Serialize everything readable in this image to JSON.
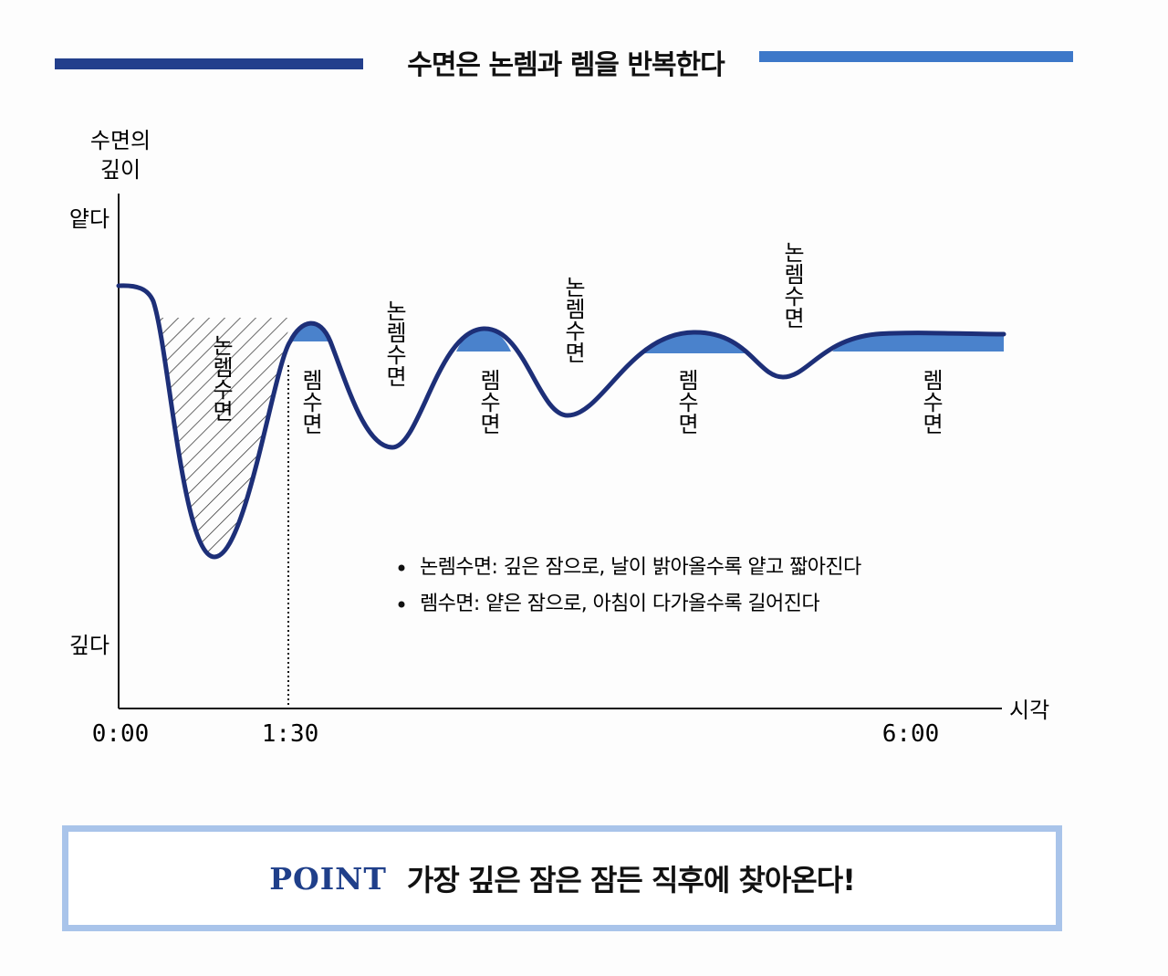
{
  "title": "수면은 논렘과 렘을 반복한다",
  "chart_data": {
    "type": "line",
    "y_axis": {
      "label_lines": [
        "수면의",
        "깊이"
      ],
      "top_label": "얕다",
      "bottom_label": "깊다"
    },
    "x_axis": {
      "label": "시각",
      "ticks": [
        "0:00",
        "1:30",
        "6:00"
      ]
    },
    "stage_labels": {
      "nonrem": "논렘수면",
      "rem": "렘수면"
    },
    "notes": [
      "논렘수면: 깊은 잠으로, 날이 밝아올수록 얕고 짧아진다",
      "렘수면: 얕은 잠으로, 아침이 다가올수록 길어진다"
    ],
    "colors": {
      "curve": "#1d2f78",
      "rem_fill": "#4a82cc",
      "axis": "#111111",
      "hatch": "#333333"
    }
  },
  "point": {
    "label": "POINT",
    "text": "가장 깊은 잠은 잠든 직후에 찾아온다!"
  }
}
